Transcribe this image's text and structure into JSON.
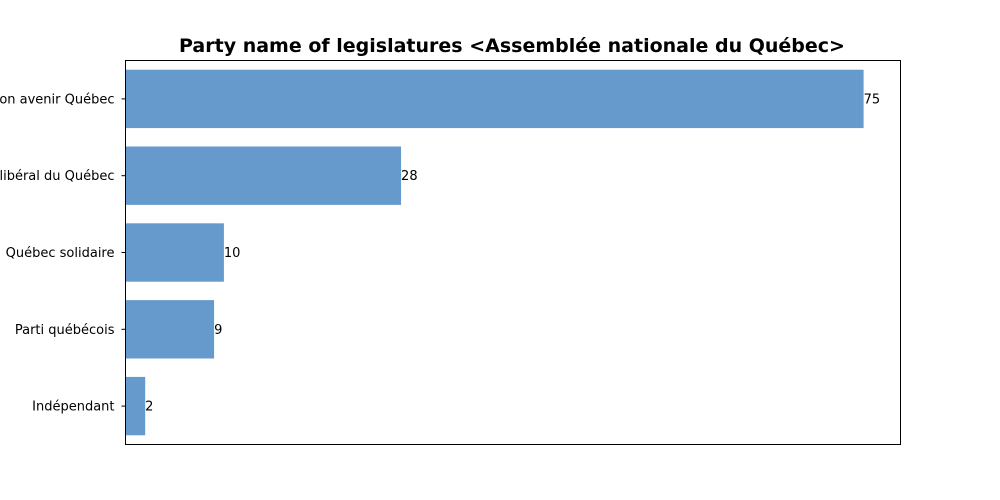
{
  "chart_data": {
    "type": "bar",
    "orientation": "horizontal",
    "title": "Party name of legislatures <Assemblée nationale du Québec>",
    "categories": [
      "Coalition avenir Québec",
      "Parti libéral du Québec",
      "Québec solidaire",
      "Parti québécois",
      "Indépendant"
    ],
    "values": [
      75,
      28,
      10,
      9,
      2
    ],
    "data_labels": [
      "75",
      "28",
      "10",
      "9",
      "2"
    ],
    "xlim": [
      0,
      78.75
    ],
    "x_ticks_visible": false,
    "grid": false,
    "bar_color": "#6699cc"
  }
}
